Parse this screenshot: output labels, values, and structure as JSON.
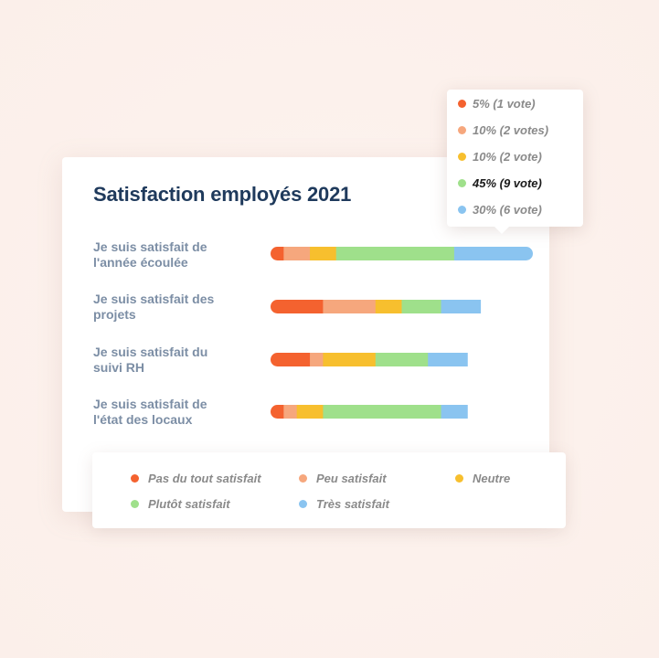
{
  "chart_data": {
    "type": "bar",
    "stacked": true,
    "orientation": "horizontal",
    "title": "Satisfaction employés  2021",
    "categories": [
      [
        "Je suis satisfait de",
        "l'année écoulée"
      ],
      [
        "Je suis satisfait des",
        "projets"
      ],
      [
        "Je suis satisfait du",
        "suivi RH"
      ],
      [
        "Je suis satisfait de",
        "l'état des locaux"
      ]
    ],
    "series": [
      {
        "name": "Pas du tout satisfait",
        "color": "#f4622f",
        "values": [
          5,
          20,
          15,
          5
        ]
      },
      {
        "name": "Peu satisfait",
        "color": "#f6a77d",
        "values": [
          10,
          20,
          5,
          5
        ]
      },
      {
        "name": "Neutre",
        "color": "#f7bf2e",
        "values": [
          10,
          10,
          20,
          10
        ]
      },
      {
        "name": "Plutôt satisfait",
        "color": "#9fe08b",
        "values": [
          45,
          15,
          20,
          45
        ]
      },
      {
        "name": "Très satisfait",
        "color": "#8ac4f0",
        "values": [
          30,
          15,
          15,
          10
        ]
      }
    ],
    "xlim": [
      0,
      100
    ],
    "legend_position": "bottom"
  },
  "tooltip": {
    "row": 0,
    "items": [
      {
        "text": "5% (1 vote)",
        "color": "#f4622f",
        "active": false
      },
      {
        "text": "10% (2 votes)",
        "color": "#f6a77d",
        "active": false
      },
      {
        "text": "10% (2 vote)",
        "color": "#f7bf2e",
        "active": false
      },
      {
        "text": "45% (9 vote)",
        "color": "#9fe08b",
        "active": true
      },
      {
        "text": "30% (6 vote)",
        "color": "#8ac4f0",
        "active": false
      }
    ]
  }
}
